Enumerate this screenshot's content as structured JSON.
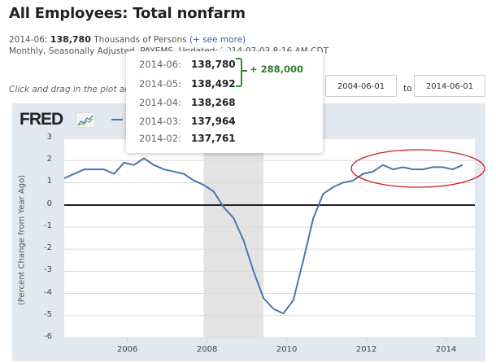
{
  "header": {
    "title": "All Employees: Total nonfarm",
    "latest_label": "2014-06:",
    "latest_value": "138,780",
    "units": "Thousands of Persons",
    "see_more": "(+ see more)",
    "meta_line": "Monthly, Seasonally Adjusted, PAYEMS, Updated: 2014-07-03 8:16 AM CDT"
  },
  "controls": {
    "hint": "Click and drag in the plot area or select dates:",
    "start_date": "2004-06-01",
    "to_label": "to",
    "end_date": "2014-06-01"
  },
  "tooltip": {
    "rows": [
      {
        "date": "2014-06:",
        "value": "138,780"
      },
      {
        "date": "2014-05:",
        "value": "138,492"
      },
      {
        "date": "2014-04:",
        "value": "138,268"
      },
      {
        "date": "2014-03:",
        "value": "137,964"
      },
      {
        "date": "2014-02:",
        "value": "137,761"
      }
    ],
    "difference": "+ 288,000",
    "brace_color": "#2e8b2e"
  },
  "logo": {
    "text": "FRED"
  },
  "colors": {
    "series": "#4a76ae",
    "panel_bg": "#e1e8f0",
    "recession": "#e3e3e3",
    "annotation_ellipse": "#cc1f1f",
    "zero_line": "#222222"
  },
  "chart_data": {
    "type": "line",
    "title": "All Employees: Total nonfarm",
    "xlabel": "",
    "ylabel": "(Percent Change from Year Ago)",
    "ylim": [
      -6,
      3
    ],
    "yticks": [
      "3",
      "2",
      "1",
      "0",
      "-1",
      "-2",
      "-3",
      "-4",
      "-5",
      "-6"
    ],
    "xticks": [
      "2006",
      "2008",
      "2010",
      "2012",
      "2014"
    ],
    "grid": true,
    "recession_shading": {
      "start": "2007-12",
      "end": "2009-06"
    },
    "annotation": "red ellipse around 2012-2014 values (~1.6-1.8%)",
    "series": [
      {
        "name": "All Employees: Total nonfarm",
        "x": [
          "2004-06",
          "2004-09",
          "2004-12",
          "2005-03",
          "2005-06",
          "2005-09",
          "2005-12",
          "2006-03",
          "2006-06",
          "2006-09",
          "2006-12",
          "2007-03",
          "2007-06",
          "2007-09",
          "2007-12",
          "2008-03",
          "2008-06",
          "2008-09",
          "2008-12",
          "2009-03",
          "2009-06",
          "2009-09",
          "2009-12",
          "2010-03",
          "2010-06",
          "2010-09",
          "2010-12",
          "2011-03",
          "2011-06",
          "2011-09",
          "2011-12",
          "2012-03",
          "2012-06",
          "2012-09",
          "2012-12",
          "2013-03",
          "2013-06",
          "2013-09",
          "2013-12",
          "2014-03",
          "2014-06"
        ],
        "values": [
          1.2,
          1.4,
          1.6,
          1.6,
          1.6,
          1.4,
          1.9,
          1.8,
          2.1,
          1.8,
          1.6,
          1.5,
          1.4,
          1.1,
          0.9,
          0.6,
          -0.1,
          -0.6,
          -1.6,
          -3.0,
          -4.2,
          -4.7,
          -4.9,
          -4.3,
          -2.5,
          -0.6,
          0.5,
          0.8,
          1.0,
          1.1,
          1.4,
          1.5,
          1.8,
          1.6,
          1.7,
          1.6,
          1.6,
          1.7,
          1.7,
          1.6,
          1.8
        ]
      }
    ]
  }
}
